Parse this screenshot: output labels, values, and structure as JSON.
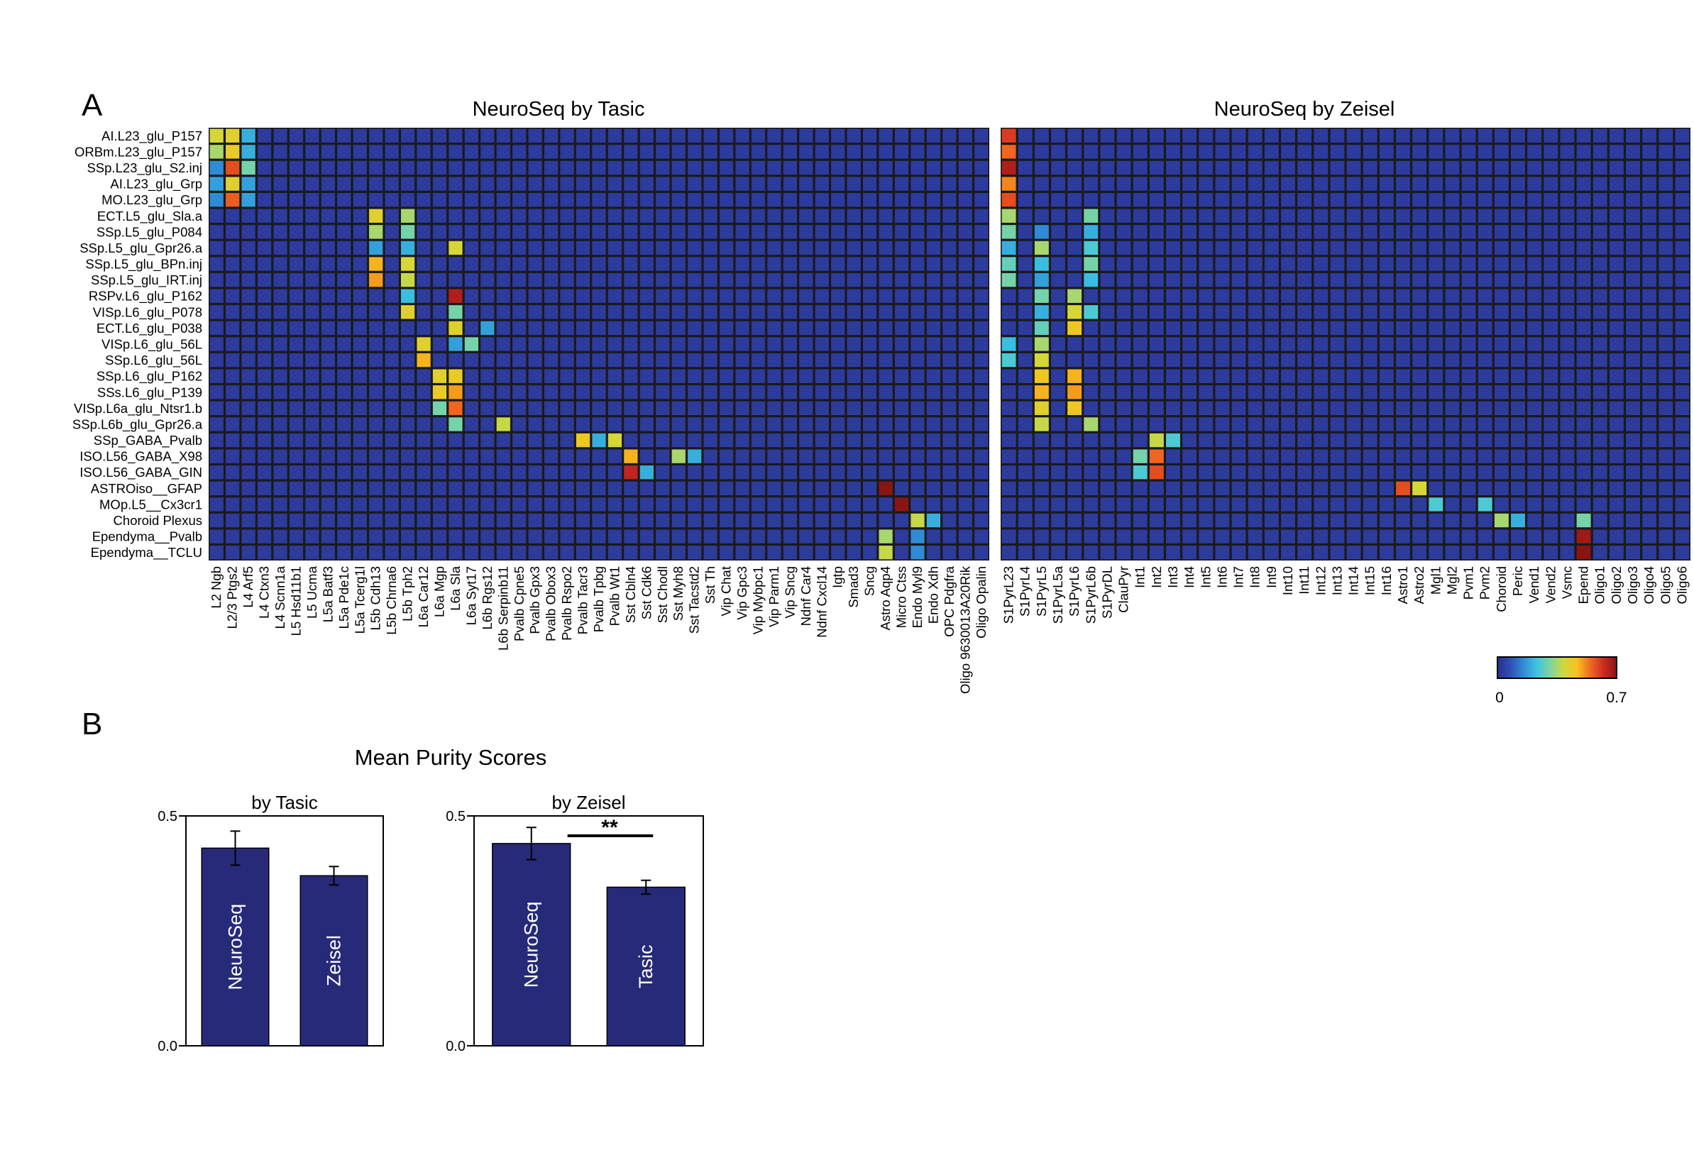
{
  "panels": {
    "a_label": "A",
    "b_label": "B"
  },
  "colors": {
    "cell_border": "#1a1a1a",
    "bar_fill": "#262a78",
    "colormap": [
      "#2b2e8c",
      "#2f50b8",
      "#2f8fd8",
      "#3ec6e0",
      "#7fd4a0",
      "#cfd93c",
      "#f8c21c",
      "#f26a1f",
      "#d12a22",
      "#8a1414"
    ]
  },
  "colorbar": {
    "min_label": "0",
    "max_label": "0.7",
    "min": 0,
    "max": 0.7
  },
  "chart_data": [
    {
      "type": "heatmap",
      "title": "NeuroSeq by Tasic",
      "rows": [
        "AI.L23_glu_P157",
        "ORBm.L23_glu_P157",
        "SSp.L23_glu_S2.inj",
        "AI.L23_glu_Grp",
        "MO.L23_glu_Grp",
        "ECT.L5_glu_Sla.a",
        "SSp.L5_glu_P084",
        "SSp.L5_glu_Gpr26.a",
        "SSp.L5_glu_BPn.inj",
        "SSp.L5_glu_IRT.inj",
        "RSPv.L6_glu_P162",
        "VISp.L6_glu_P078",
        "ECT.L6_glu_P038",
        "VISp.L6_glu_56L",
        "SSp.L6_glu_56L",
        "SSp.L6_glu_P162",
        "SSs.L6_glu_P139",
        "VISp.L6a_glu_Ntsr1.b",
        "SSp.L6b_glu_Gpr26.a",
        "SSp_GABA_Pvalb",
        "ISO.L56_GABA_X98",
        "ISO.L56_GABA_GIN",
        "ASTROiso__GFAP",
        "MOp.L5__Cx3cr1",
        "Choroid Plexus",
        "Ependyma__Pvalb",
        "Ependyma__TCLU"
      ],
      "columns": [
        "L2 Ngb",
        "L2/3 Ptgs2",
        "L4 Arf5",
        "L4 Ctxn3",
        "L4 Scnn1a",
        "L5 Hsd11b1",
        "L5 Ucma",
        "L5a Batf3",
        "L5a Pde1c",
        "L5a Tcerg1l",
        "L5b Cdh13",
        "L5b Chrna6",
        "L5b Tph2",
        "L6a Car12",
        "L6a Mgp",
        "L6a Sla",
        "L6a Syt17",
        "L6b Rgs12",
        "L6b Serpinb11",
        "Pvalb Cpne5",
        "Pvalb Gpx3",
        "Pvalb Obox3",
        "Pvalb Rspo2",
        "Pvalb Tacr3",
        "Pvalb Tpbg",
        "Pvalb Wt1",
        "Sst Cbln4",
        "Sst Cdk6",
        "Sst Chodl",
        "Sst Myh8",
        "Sst Tacstd2",
        "Sst Th",
        "Vip Chat",
        "Vip Gpc3",
        "Vip Mybpc1",
        "Vip Parm1",
        "Vip Sncg",
        "Ndnf Car4",
        "Ndnf Cxcl14",
        "Igtp",
        "Smad3",
        "Sncg",
        "Astro Aqp4",
        "Micro Ctss",
        "Endo Myl9",
        "Endo Xdh",
        "OPC Pdgfra",
        "Oligo 9630013A20Rik",
        "Oligo Opalin"
      ],
      "background_value": 0.03,
      "high_cells": [
        [
          0,
          0,
          0.4
        ],
        [
          0,
          1,
          0.42
        ],
        [
          0,
          2,
          0.2
        ],
        [
          1,
          0,
          0.35
        ],
        [
          1,
          1,
          0.44
        ],
        [
          1,
          2,
          0.2
        ],
        [
          2,
          0,
          0.15
        ],
        [
          2,
          1,
          0.58
        ],
        [
          2,
          2,
          0.3
        ],
        [
          3,
          0,
          0.18
        ],
        [
          3,
          1,
          0.42
        ],
        [
          3,
          2,
          0.18
        ],
        [
          4,
          0,
          0.15
        ],
        [
          4,
          1,
          0.56
        ],
        [
          4,
          2,
          0.18
        ],
        [
          5,
          10,
          0.42
        ],
        [
          5,
          12,
          0.35
        ],
        [
          6,
          10,
          0.35
        ],
        [
          6,
          12,
          0.3
        ],
        [
          7,
          10,
          0.18
        ],
        [
          7,
          12,
          0.2
        ],
        [
          7,
          15,
          0.4
        ],
        [
          8,
          10,
          0.48
        ],
        [
          8,
          12,
          0.4
        ],
        [
          9,
          10,
          0.5
        ],
        [
          9,
          12,
          0.38
        ],
        [
          10,
          12,
          0.22
        ],
        [
          10,
          15,
          0.66
        ],
        [
          11,
          12,
          0.42
        ],
        [
          11,
          15,
          0.3
        ],
        [
          12,
          15,
          0.42
        ],
        [
          12,
          17,
          0.18
        ],
        [
          13,
          13,
          0.42
        ],
        [
          13,
          15,
          0.18
        ],
        [
          13,
          16,
          0.3
        ],
        [
          14,
          13,
          0.48
        ],
        [
          15,
          14,
          0.42
        ],
        [
          15,
          15,
          0.44
        ],
        [
          16,
          14,
          0.44
        ],
        [
          16,
          15,
          0.5
        ],
        [
          17,
          14,
          0.3
        ],
        [
          17,
          15,
          0.55
        ],
        [
          18,
          15,
          0.3
        ],
        [
          18,
          18,
          0.38
        ],
        [
          19,
          23,
          0.45
        ],
        [
          19,
          25,
          0.4
        ],
        [
          19,
          24,
          0.2
        ],
        [
          20,
          26,
          0.48
        ],
        [
          20,
          29,
          0.35
        ],
        [
          20,
          30,
          0.2
        ],
        [
          21,
          26,
          0.64
        ],
        [
          21,
          27,
          0.2
        ],
        [
          22,
          42,
          0.7
        ],
        [
          23,
          43,
          0.7
        ],
        [
          24,
          44,
          0.38
        ],
        [
          24,
          45,
          0.2
        ],
        [
          25,
          42,
          0.35
        ],
        [
          25,
          44,
          0.15
        ],
        [
          26,
          42,
          0.38
        ],
        [
          26,
          44,
          0.15
        ]
      ]
    },
    {
      "type": "heatmap",
      "title": "NeuroSeq by Zeisel",
      "rows": [
        "AI.L23_glu_P157",
        "ORBm.L23_glu_P157",
        "SSp.L23_glu_S2.inj",
        "AI.L23_glu_Grp",
        "MO.L23_glu_Grp",
        "ECT.L5_glu_Sla.a",
        "SSp.L5_glu_P084",
        "SSp.L5_glu_Gpr26.a",
        "SSp.L5_glu_BPn.inj",
        "SSp.L5_glu_IRT.inj",
        "RSPv.L6_glu_P162",
        "VISp.L6_glu_P078",
        "ECT.L6_glu_P038",
        "VISp.L6_glu_56L",
        "SSp.L6_glu_56L",
        "SSp.L6_glu_P162",
        "SSs.L6_glu_P139",
        "VISp.L6a_glu_Ntsr1.b",
        "SSp.L6b_glu_Gpr26.a",
        "SSp_GABA_Pvalb",
        "ISO.L56_GABA_X98",
        "ISO.L56_GABA_GIN",
        "ASTROiso__GFAP",
        "MOp.L5__Cx3cr1",
        "Choroid Plexus",
        "Ependyma__Pvalb",
        "Ependyma__TCLU"
      ],
      "columns": [
        "S1PyrL23",
        "S1PyrL4",
        "S1PyrL5",
        "S1PyrL5a",
        "S1PyrL6",
        "S1PyrL6b",
        "S1PyrDL",
        "ClauPyr",
        "Int1",
        "Int2",
        "Int3",
        "Int4",
        "Int5",
        "Int6",
        "Int7",
        "Int8",
        "Int9",
        "Int10",
        "Int11",
        "Int12",
        "Int13",
        "Int14",
        "Int15",
        "Int16",
        "Astro1",
        "Astro2",
        "Mgl1",
        "Mgl2",
        "Pvm1",
        "Pvm2",
        "Choroid",
        "Peric",
        "Vend1",
        "Vend2",
        "Vsmc",
        "Epend",
        "Oligo1",
        "Oligo2",
        "Oligo3",
        "Oligo4",
        "Oligo5",
        "Oligo6"
      ],
      "background_value": 0.03,
      "high_cells": [
        [
          0,
          0,
          0.6
        ],
        [
          1,
          0,
          0.55
        ],
        [
          2,
          0,
          0.66
        ],
        [
          3,
          0,
          0.52
        ],
        [
          4,
          0,
          0.58
        ],
        [
          5,
          0,
          0.35
        ],
        [
          5,
          5,
          0.3
        ],
        [
          6,
          0,
          0.3
        ],
        [
          6,
          2,
          0.15
        ],
        [
          6,
          5,
          0.2
        ],
        [
          7,
          0,
          0.2
        ],
        [
          7,
          2,
          0.35
        ],
        [
          7,
          5,
          0.25
        ],
        [
          8,
          0,
          0.28
        ],
        [
          8,
          2,
          0.22
        ],
        [
          8,
          5,
          0.3
        ],
        [
          9,
          0,
          0.3
        ],
        [
          9,
          2,
          0.18
        ],
        [
          9,
          5,
          0.22
        ],
        [
          10,
          2,
          0.3
        ],
        [
          10,
          4,
          0.35
        ],
        [
          11,
          2,
          0.2
        ],
        [
          11,
          4,
          0.4
        ],
        [
          11,
          5,
          0.25
        ],
        [
          12,
          2,
          0.28
        ],
        [
          12,
          4,
          0.45
        ],
        [
          13,
          0,
          0.22
        ],
        [
          13,
          2,
          0.35
        ],
        [
          14,
          0,
          0.25
        ],
        [
          14,
          2,
          0.4
        ],
        [
          15,
          2,
          0.45
        ],
        [
          15,
          4,
          0.48
        ],
        [
          16,
          2,
          0.48
        ],
        [
          16,
          4,
          0.5
        ],
        [
          17,
          2,
          0.42
        ],
        [
          17,
          4,
          0.45
        ],
        [
          18,
          2,
          0.38
        ],
        [
          18,
          5,
          0.35
        ],
        [
          19,
          9,
          0.38
        ],
        [
          19,
          10,
          0.25
        ],
        [
          20,
          8,
          0.3
        ],
        [
          20,
          9,
          0.55
        ],
        [
          21,
          8,
          0.25
        ],
        [
          21,
          9,
          0.58
        ],
        [
          22,
          24,
          0.58
        ],
        [
          22,
          25,
          0.4
        ],
        [
          23,
          26,
          0.25
        ],
        [
          23,
          29,
          0.25
        ],
        [
          24,
          30,
          0.35
        ],
        [
          24,
          31,
          0.2
        ],
        [
          24,
          35,
          0.3
        ],
        [
          25,
          35,
          0.68
        ],
        [
          26,
          35,
          0.7
        ]
      ]
    },
    {
      "type": "bar",
      "title": "by Tasic",
      "categories": [
        "NeuroSeq",
        "Zeisel"
      ],
      "values": [
        0.43,
        0.37
      ],
      "errors": [
        0.037,
        0.02
      ],
      "ylim": [
        0,
        0.5
      ],
      "yticks": [
        "0.0",
        "0.5"
      ],
      "significance": ""
    },
    {
      "type": "bar",
      "title": "by Zeisel",
      "categories": [
        "NeuroSeq",
        "Tasic"
      ],
      "values": [
        0.44,
        0.345
      ],
      "errors": [
        0.035,
        0.015
      ],
      "ylim": [
        0,
        0.5
      ],
      "yticks": [
        "0.0",
        "0.5"
      ],
      "significance": "**"
    }
  ],
  "mean_purity_title": "Mean Purity Scores"
}
